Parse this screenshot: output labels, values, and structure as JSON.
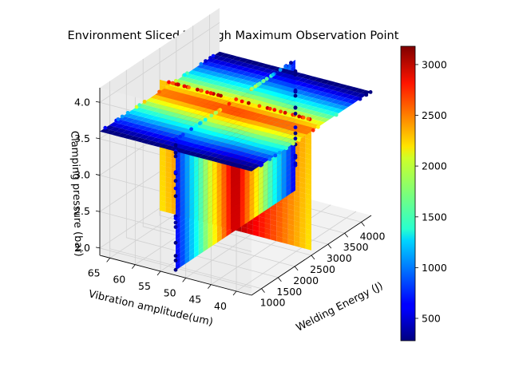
{
  "chart_data": {
    "type": "scatter",
    "projection": "3d",
    "title": "Environment Sliced Through Maximum Observation Point",
    "xlabel": "Welding Energy (J)",
    "ylabel": "Vibration amplitude(um)",
    "zlabel": "Clamping pressure (bar)",
    "xticks": [
      "1000",
      "1500",
      "2000",
      "2500",
      "3000",
      "3500",
      "4000"
    ],
    "yticks": [
      "40",
      "45",
      "50",
      "55",
      "60",
      "65"
    ],
    "zticks": [
      "2.0",
      "2.5",
      "3.0",
      "3.5",
      "4.0"
    ],
    "xlim": [
      700,
      4300
    ],
    "ylim": [
      37,
      67
    ],
    "zlim": [
      1.9,
      4.2
    ],
    "slices": {
      "energy_slice_at": 2500,
      "amplitude_slice_at": 52,
      "pressure_slice_at": 3.6
    },
    "colorbar": {
      "ticks": [
        "500",
        "1000",
        "1500",
        "2000",
        "2500",
        "3000"
      ],
      "min": 280,
      "max": 3180,
      "colormap": "jet"
    },
    "grid": true
  }
}
